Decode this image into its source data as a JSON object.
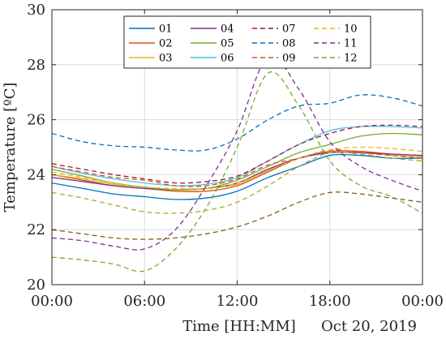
{
  "chart_data": {
    "type": "line",
    "title": "",
    "xlabel": "Time [HH:MM]",
    "ylabel": "Temperature [ºC]",
    "date_label": "Oct 20, 2019",
    "xlim": [
      0,
      24
    ],
    "ylim": [
      20,
      30
    ],
    "grid": true,
    "legend_position": "top-center",
    "x_ticks": [
      {
        "value": 0,
        "label": "00:00"
      },
      {
        "value": 6,
        "label": "06:00"
      },
      {
        "value": 12,
        "label": "12:00"
      },
      {
        "value": 18,
        "label": "18:00"
      },
      {
        "value": 24,
        "label": "00:00"
      }
    ],
    "y_ticks": [
      {
        "value": 20,
        "label": "20"
      },
      {
        "value": 22,
        "label": "22"
      },
      {
        "value": 24,
        "label": "24"
      },
      {
        "value": 26,
        "label": "26"
      },
      {
        "value": 28,
        "label": "28"
      },
      {
        "value": 30,
        "label": "30"
      }
    ],
    "x": [
      0,
      2,
      4,
      6,
      8,
      10,
      12,
      14,
      16,
      18,
      20,
      22,
      24
    ],
    "series": [
      {
        "name": "01",
        "color": "#0072BD",
        "dash": "solid",
        "values": [
          23.7,
          23.5,
          23.3,
          23.2,
          23.1,
          23.15,
          23.4,
          23.9,
          24.3,
          24.7,
          24.7,
          24.6,
          24.6
        ]
      },
      {
        "name": "02",
        "color": "#D95319",
        "dash": "solid",
        "values": [
          24.0,
          23.8,
          23.6,
          23.5,
          23.4,
          23.4,
          23.6,
          24.1,
          24.6,
          24.85,
          24.85,
          24.75,
          24.7
        ]
      },
      {
        "name": "03",
        "color": "#EDB120",
        "dash": "solid",
        "values": [
          24.0,
          23.85,
          23.65,
          23.5,
          23.45,
          23.5,
          23.65,
          24.15,
          24.6,
          24.8,
          24.8,
          24.7,
          24.65
        ]
      },
      {
        "name": "04",
        "color": "#7E2F8E",
        "dash": "solid",
        "values": [
          23.9,
          23.75,
          23.6,
          23.5,
          23.45,
          23.5,
          23.7,
          24.2,
          24.6,
          24.8,
          24.8,
          24.75,
          24.7
        ]
      },
      {
        "name": "05",
        "color": "#77AC30",
        "dash": "solid",
        "values": [
          24.2,
          23.95,
          23.7,
          23.55,
          23.45,
          23.5,
          23.8,
          24.3,
          24.8,
          25.1,
          25.4,
          25.5,
          25.45
        ]
      },
      {
        "name": "06",
        "color": "#4DBEEE",
        "dash": "solid",
        "values": [
          24.3,
          24.05,
          23.85,
          23.7,
          23.6,
          23.65,
          23.9,
          24.5,
          25.1,
          25.6,
          25.75,
          25.75,
          25.7
        ]
      },
      {
        "name": "07",
        "color": "#A2142F",
        "dash": "dashed",
        "values": [
          24.4,
          24.2,
          24.0,
          23.85,
          23.7,
          23.75,
          23.95,
          24.5,
          25.1,
          25.5,
          25.75,
          25.8,
          25.75
        ]
      },
      {
        "name": "08",
        "color": "#0072BD",
        "dash": "dashed",
        "values": [
          25.5,
          25.2,
          25.05,
          25.0,
          24.9,
          24.9,
          25.3,
          26.0,
          26.5,
          26.6,
          26.9,
          26.8,
          26.5
        ]
      },
      {
        "name": "09",
        "color": "#D95319",
        "dash": "dashed",
        "values": [
          24.3,
          24.1,
          23.9,
          23.8,
          23.6,
          23.6,
          23.85,
          24.35,
          24.6,
          24.9,
          24.8,
          24.7,
          24.6
        ]
      },
      {
        "name": "10",
        "color": "#EDB120",
        "dash": "dashed",
        "values": [
          24.1,
          23.9,
          23.7,
          23.55,
          23.5,
          23.5,
          23.7,
          24.15,
          24.6,
          24.9,
          25.0,
          24.95,
          24.85
        ]
      },
      {
        "name": "11",
        "color": "#7E2F8E",
        "dash": "dashed",
        "values": [
          21.7,
          21.6,
          21.4,
          21.3,
          22.0,
          23.6,
          25.6,
          28.3,
          27.1,
          25.2,
          24.3,
          23.8,
          23.4
        ]
      },
      {
        "name": "12",
        "color": "#77AC30",
        "dash": "dashed",
        "values": [
          21.0,
          20.9,
          20.75,
          20.5,
          21.3,
          22.8,
          25.0,
          27.7,
          26.5,
          24.5,
          23.6,
          23.2,
          22.6
        ]
      },
      {
        "name": "",
        "color": "#AAAA22",
        "dash": "dashed",
        "values": [
          23.35,
          23.15,
          22.9,
          22.65,
          22.6,
          22.7,
          23.0,
          23.6,
          24.3,
          24.8,
          24.75,
          24.6,
          24.5
        ]
      },
      {
        "name": "",
        "color": "#8B5A1B",
        "dash": "dashed",
        "values": [
          22.0,
          21.85,
          21.7,
          21.65,
          21.7,
          21.85,
          22.1,
          22.5,
          23.0,
          23.35,
          23.3,
          23.15,
          23.0
        ]
      }
    ]
  }
}
